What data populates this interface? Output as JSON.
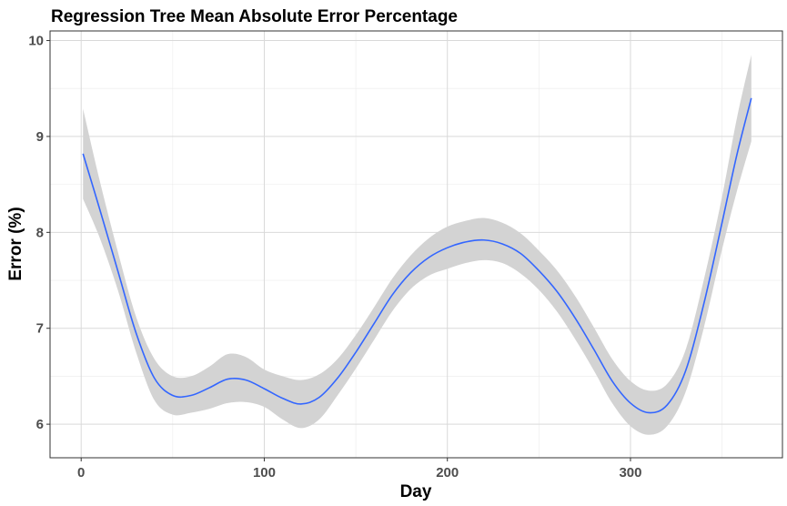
{
  "chart_data": {
    "type": "line",
    "title": "Regression Tree Mean Absolute Error Percentage",
    "xlabel": "Day",
    "ylabel": "Error (%)",
    "xlim": [
      -17,
      383
    ],
    "ylim": [
      5.65,
      10.1
    ],
    "x_ticks": [
      0,
      100,
      200,
      300
    ],
    "y_ticks": [
      6,
      7,
      8,
      9,
      10
    ],
    "grid": true,
    "series": [
      {
        "color": "#3366ff",
        "band_color": "#d3d3d3",
        "points": [
          {
            "x": 1,
            "y": 8.82,
            "lo": 8.35,
            "hi": 9.29
          },
          {
            "x": 10,
            "y": 8.25,
            "lo": 7.95,
            "hi": 8.55
          },
          {
            "x": 20,
            "y": 7.6,
            "lo": 7.4,
            "hi": 7.8
          },
          {
            "x": 30,
            "y": 6.95,
            "lo": 6.75,
            "hi": 7.12
          },
          {
            "x": 40,
            "y": 6.48,
            "lo": 6.25,
            "hi": 6.68
          },
          {
            "x": 50,
            "y": 6.3,
            "lo": 6.1,
            "hi": 6.5
          },
          {
            "x": 60,
            "y": 6.3,
            "lo": 6.12,
            "hi": 6.5
          },
          {
            "x": 70,
            "y": 6.38,
            "lo": 6.16,
            "hi": 6.6
          },
          {
            "x": 80,
            "y": 6.47,
            "lo": 6.22,
            "hi": 6.73
          },
          {
            "x": 90,
            "y": 6.46,
            "lo": 6.23,
            "hi": 6.7
          },
          {
            "x": 100,
            "y": 6.37,
            "lo": 6.18,
            "hi": 6.57
          },
          {
            "x": 110,
            "y": 6.27,
            "lo": 6.05,
            "hi": 6.5
          },
          {
            "x": 120,
            "y": 6.21,
            "lo": 5.96,
            "hi": 6.46
          },
          {
            "x": 130,
            "y": 6.28,
            "lo": 6.05,
            "hi": 6.52
          },
          {
            "x": 140,
            "y": 6.48,
            "lo": 6.3,
            "hi": 6.68
          },
          {
            "x": 150,
            "y": 6.75,
            "lo": 6.58,
            "hi": 6.93
          },
          {
            "x": 160,
            "y": 7.05,
            "lo": 6.88,
            "hi": 7.22
          },
          {
            "x": 170,
            "y": 7.35,
            "lo": 7.18,
            "hi": 7.52
          },
          {
            "x": 180,
            "y": 7.58,
            "lo": 7.41,
            "hi": 7.76
          },
          {
            "x": 190,
            "y": 7.74,
            "lo": 7.55,
            "hi": 7.94
          },
          {
            "x": 200,
            "y": 7.84,
            "lo": 7.62,
            "hi": 8.06
          },
          {
            "x": 210,
            "y": 7.9,
            "lo": 7.68,
            "hi": 8.12
          },
          {
            "x": 220,
            "y": 7.92,
            "lo": 7.71,
            "hi": 8.15
          },
          {
            "x": 230,
            "y": 7.88,
            "lo": 7.68,
            "hi": 8.1
          },
          {
            "x": 240,
            "y": 7.78,
            "lo": 7.57,
            "hi": 7.99
          },
          {
            "x": 250,
            "y": 7.6,
            "lo": 7.4,
            "hi": 7.81
          },
          {
            "x": 260,
            "y": 7.38,
            "lo": 7.17,
            "hi": 7.6
          },
          {
            "x": 270,
            "y": 7.1,
            "lo": 6.88,
            "hi": 7.33
          },
          {
            "x": 280,
            "y": 6.78,
            "lo": 6.56,
            "hi": 7.01
          },
          {
            "x": 290,
            "y": 6.45,
            "lo": 6.22,
            "hi": 6.68
          },
          {
            "x": 300,
            "y": 6.22,
            "lo": 5.98,
            "hi": 6.45
          },
          {
            "x": 310,
            "y": 6.12,
            "lo": 5.89,
            "hi": 6.35
          },
          {
            "x": 320,
            "y": 6.2,
            "lo": 5.98,
            "hi": 6.42
          },
          {
            "x": 330,
            "y": 6.55,
            "lo": 6.33,
            "hi": 6.77
          },
          {
            "x": 340,
            "y": 7.25,
            "lo": 7.0,
            "hi": 7.5
          },
          {
            "x": 350,
            "y": 8.1,
            "lo": 7.82,
            "hi": 8.37
          },
          {
            "x": 358,
            "y": 8.8,
            "lo": 8.42,
            "hi": 9.18
          },
          {
            "x": 366,
            "y": 9.4,
            "lo": 8.95,
            "hi": 9.85
          }
        ]
      }
    ]
  }
}
